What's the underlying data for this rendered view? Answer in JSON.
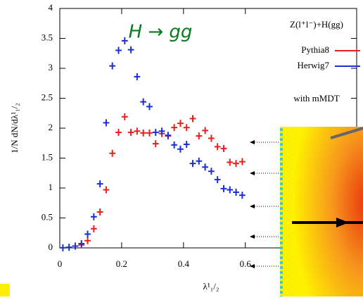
{
  "chart_data": {
    "type": "scatter",
    "annotation": "H → gg",
    "legend_title": "Z(l⁺l⁻)+H(gg)",
    "note": "with mMDT",
    "xlabel": "λ¹₁/₂",
    "ylabel": "1/N dN/dλ¹₁/₂",
    "xlim": [
      0,
      0.96
    ],
    "ylim": [
      0,
      4
    ],
    "xticks": [
      0,
      0.2,
      0.4,
      {
        "value": 0.6,
        "label": "0.6"
      }
    ],
    "yticks": [
      0,
      0.5,
      1,
      1.5,
      2,
      2.5,
      3,
      3.5,
      4
    ],
    "series": [
      {
        "name": "Pythia8",
        "color": "#e8201c",
        "x": [
          0.07,
          0.09,
          0.11,
          0.13,
          0.15,
          0.17,
          0.19,
          0.21,
          0.23,
          0.25,
          0.27,
          0.29,
          0.31,
          0.33,
          0.35,
          0.37,
          0.39,
          0.41,
          0.43,
          0.45,
          0.47,
          0.49,
          0.51,
          0.53,
          0.55,
          0.57,
          0.59
        ],
        "values": [
          0.05,
          0.12,
          0.32,
          0.6,
          0.97,
          1.58,
          1.93,
          2.19,
          1.93,
          1.95,
          1.92,
          1.92,
          1.74,
          1.91,
          1.87,
          2.01,
          2.08,
          2.01,
          2.16,
          1.87,
          1.96,
          1.83,
          1.69,
          1.66,
          1.43,
          1.41,
          1.44
        ]
      },
      {
        "name": "Herwig7",
        "color": "#1a2fd6",
        "x": [
          0.01,
          0.03,
          0.05,
          0.07,
          0.09,
          0.11,
          0.13,
          0.15,
          0.17,
          0.19,
          0.21,
          0.23,
          0.25,
          0.27,
          0.29,
          0.31,
          0.33,
          0.35,
          0.37,
          0.39,
          0.41,
          0.43,
          0.45,
          0.47,
          0.49,
          0.51,
          0.53,
          0.55,
          0.57,
          0.59
        ],
        "values": [
          0.002,
          0.01,
          0.03,
          0.07,
          0.23,
          0.52,
          1.07,
          2.09,
          3.04,
          3.3,
          3.46,
          3.31,
          2.86,
          2.44,
          2.36,
          1.93,
          1.95,
          1.88,
          1.72,
          1.65,
          1.73,
          1.41,
          1.45,
          1.35,
          1.28,
          1.14,
          0.99,
          0.97,
          0.93,
          0.88
        ]
      }
    ]
  }
}
